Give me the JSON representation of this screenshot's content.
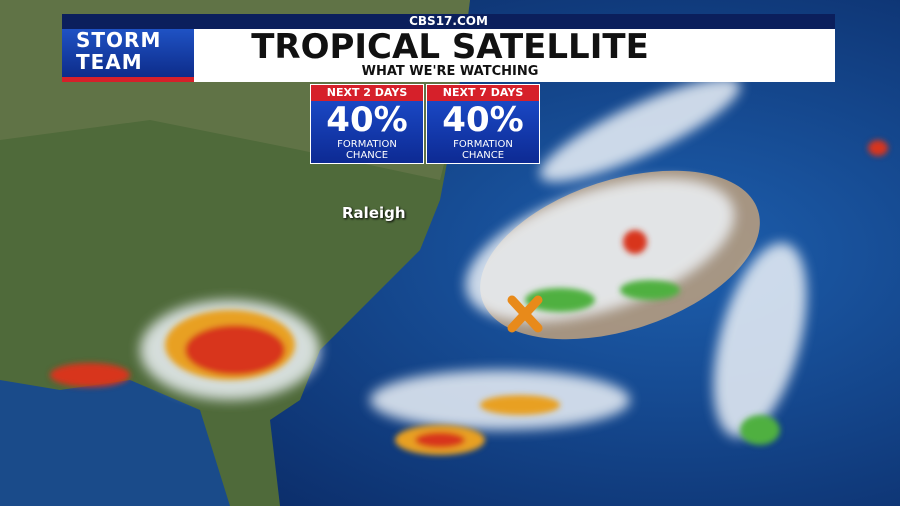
{
  "header": {
    "site": "CBS17.COM",
    "logo": [
      "STORM",
      "TEAM"
    ],
    "title": "TROPICAL SATELLITE",
    "subtitle": "WHAT WE'RE WATCHING"
  },
  "outlook": [
    {
      "period": "NEXT 2 DAYS",
      "chance": "40%",
      "label": [
        "FORMATION",
        "CHANCE"
      ]
    },
    {
      "period": "NEXT 7 DAYS",
      "chance": "40%",
      "label": [
        "FORMATION",
        "CHANCE"
      ]
    }
  ],
  "map": {
    "city": "Raleigh"
  }
}
